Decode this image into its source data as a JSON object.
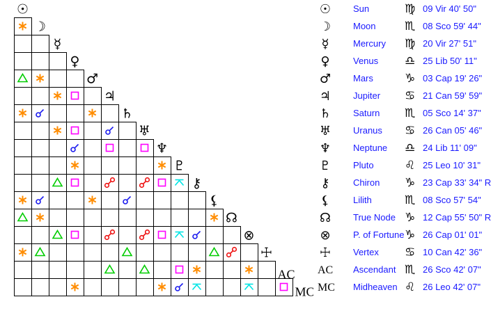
{
  "colors": {
    "conjunction": "#1a1aee",
    "sextile": "#ff8c00",
    "square": "#ff00ff",
    "trine": "#00cc00",
    "opposition": "#ee1111",
    "quincunx": "#00e5e5",
    "text": "#1a1aff"
  },
  "planets": [
    {
      "name": "Sun",
      "glyph": "☉",
      "icon": "sun-icon",
      "sign_glyph": "♍",
      "sign_icon": "virgo-icon",
      "position": "09 Vir 40' 50\""
    },
    {
      "name": "Moon",
      "glyph": "☽",
      "icon": "moon-icon",
      "sign_glyph": "♏",
      "sign_icon": "scorpio-icon",
      "position": "08 Sco 59' 44\""
    },
    {
      "name": "Mercury",
      "glyph": "☿",
      "icon": "mercury-icon",
      "sign_glyph": "♍",
      "sign_icon": "virgo-icon",
      "position": "20 Vir 27' 51\""
    },
    {
      "name": "Venus",
      "glyph": "♀",
      "icon": "venus-icon",
      "sign_glyph": "♎",
      "sign_icon": "libra-icon",
      "position": "25 Lib 50' 11\""
    },
    {
      "name": "Mars",
      "glyph": "♂",
      "icon": "mars-icon",
      "sign_glyph": "♑",
      "sign_icon": "capricorn-icon",
      "position": "03 Cap 19' 26\""
    },
    {
      "name": "Jupiter",
      "glyph": "♃",
      "icon": "jupiter-icon",
      "sign_glyph": "♋",
      "sign_icon": "cancer-icon",
      "position": "21 Can 59' 59\""
    },
    {
      "name": "Saturn",
      "glyph": "♄",
      "icon": "saturn-icon",
      "sign_glyph": "♏",
      "sign_icon": "scorpio-icon",
      "position": "05 Sco 14' 37\""
    },
    {
      "name": "Uranus",
      "glyph": "♅",
      "icon": "uranus-icon",
      "sign_glyph": "♋",
      "sign_icon": "cancer-icon",
      "position": "26 Can 05' 46\""
    },
    {
      "name": "Neptune",
      "glyph": "♆",
      "icon": "neptune-icon",
      "sign_glyph": "♎",
      "sign_icon": "libra-icon",
      "position": "24 Lib 11' 09\""
    },
    {
      "name": "Pluto",
      "glyph": "♇",
      "icon": "pluto-icon",
      "sign_glyph": "♌",
      "sign_icon": "leo-icon",
      "position": "25 Leo 10' 31\""
    },
    {
      "name": "Chiron",
      "glyph": "⚷",
      "icon": "chiron-icon",
      "sign_glyph": "♑",
      "sign_icon": "capricorn-icon",
      "position": "23 Cap 33' 34\" R"
    },
    {
      "name": "Lilith",
      "glyph": "⚸",
      "icon": "lilith-icon",
      "sign_glyph": "♏",
      "sign_icon": "scorpio-icon",
      "position": "08 Sco 57' 54\""
    },
    {
      "name": "True Node",
      "glyph": "☊",
      "icon": "true-node-icon",
      "sign_glyph": "♑",
      "sign_icon": "capricorn-icon",
      "position": "12 Cap 55' 50\" R"
    },
    {
      "name": "P. of Fortune",
      "glyph": "⊗",
      "icon": "part-of-fortune-icon",
      "sign_glyph": "♑",
      "sign_icon": "capricorn-icon",
      "position": "26 Cap 01' 01\""
    },
    {
      "name": "Vertex",
      "glyph": "☩",
      "icon": "vertex-icon",
      "sign_glyph": "♋",
      "sign_icon": "cancer-icon",
      "position": "10 Can 42' 36\""
    },
    {
      "name": "Ascendant",
      "glyph": "AC",
      "icon": "ascendant-icon",
      "sign_glyph": "♏",
      "sign_icon": "scorpio-icon",
      "position": "26 Sco 42' 07\""
    },
    {
      "name": "Midheaven",
      "glyph": "MC",
      "icon": "midheaven-icon",
      "sign_glyph": "♌",
      "sign_icon": "leo-icon",
      "position": "26 Leo 42' 07\""
    }
  ],
  "aspects": [
    {
      "a": "Moon",
      "b": "Sun",
      "type": "sextile"
    },
    {
      "a": "Mars",
      "b": "Sun",
      "type": "trine"
    },
    {
      "a": "Mars",
      "b": "Moon",
      "type": "sextile"
    },
    {
      "a": "Jupiter",
      "b": "Mercury",
      "type": "sextile"
    },
    {
      "a": "Jupiter",
      "b": "Venus",
      "type": "square"
    },
    {
      "a": "Saturn",
      "b": "Sun",
      "type": "sextile"
    },
    {
      "a": "Saturn",
      "b": "Moon",
      "type": "conjunction"
    },
    {
      "a": "Saturn",
      "b": "Mars",
      "type": "sextile"
    },
    {
      "a": "Uranus",
      "b": "Mercury",
      "type": "sextile"
    },
    {
      "a": "Uranus",
      "b": "Venus",
      "type": "square"
    },
    {
      "a": "Uranus",
      "b": "Jupiter",
      "type": "conjunction"
    },
    {
      "a": "Neptune",
      "b": "Venus",
      "type": "conjunction"
    },
    {
      "a": "Neptune",
      "b": "Jupiter",
      "type": "square"
    },
    {
      "a": "Neptune",
      "b": "Uranus",
      "type": "square"
    },
    {
      "a": "Pluto",
      "b": "Venus",
      "type": "sextile"
    },
    {
      "a": "Pluto",
      "b": "Neptune",
      "type": "sextile"
    },
    {
      "a": "Chiron",
      "b": "Mercury",
      "type": "trine"
    },
    {
      "a": "Chiron",
      "b": "Venus",
      "type": "square"
    },
    {
      "a": "Chiron",
      "b": "Jupiter",
      "type": "opposition"
    },
    {
      "a": "Chiron",
      "b": "Uranus",
      "type": "opposition"
    },
    {
      "a": "Chiron",
      "b": "Neptune",
      "type": "square"
    },
    {
      "a": "Chiron",
      "b": "Pluto",
      "type": "quincunx"
    },
    {
      "a": "Lilith",
      "b": "Sun",
      "type": "sextile"
    },
    {
      "a": "Lilith",
      "b": "Moon",
      "type": "conjunction"
    },
    {
      "a": "Lilith",
      "b": "Mars",
      "type": "sextile"
    },
    {
      "a": "Lilith",
      "b": "Saturn",
      "type": "conjunction"
    },
    {
      "a": "True Node",
      "b": "Sun",
      "type": "trine"
    },
    {
      "a": "True Node",
      "b": "Moon",
      "type": "sextile"
    },
    {
      "a": "True Node",
      "b": "Lilith",
      "type": "sextile"
    },
    {
      "a": "P. of Fortune",
      "b": "Mercury",
      "type": "trine"
    },
    {
      "a": "P. of Fortune",
      "b": "Venus",
      "type": "square"
    },
    {
      "a": "P. of Fortune",
      "b": "Jupiter",
      "type": "opposition"
    },
    {
      "a": "P. of Fortune",
      "b": "Uranus",
      "type": "opposition"
    },
    {
      "a": "P. of Fortune",
      "b": "Neptune",
      "type": "square"
    },
    {
      "a": "P. of Fortune",
      "b": "Pluto",
      "type": "quincunx"
    },
    {
      "a": "P. of Fortune",
      "b": "Chiron",
      "type": "conjunction"
    },
    {
      "a": "Vertex",
      "b": "Sun",
      "type": "sextile"
    },
    {
      "a": "Vertex",
      "b": "Moon",
      "type": "trine"
    },
    {
      "a": "Vertex",
      "b": "Saturn",
      "type": "trine"
    },
    {
      "a": "Vertex",
      "b": "Lilith",
      "type": "trine"
    },
    {
      "a": "Vertex",
      "b": "True Node",
      "type": "opposition"
    },
    {
      "a": "Ascendant",
      "b": "Jupiter",
      "type": "trine"
    },
    {
      "a": "Ascendant",
      "b": "Uranus",
      "type": "trine"
    },
    {
      "a": "Ascendant",
      "b": "Pluto",
      "type": "square"
    },
    {
      "a": "Ascendant",
      "b": "Chiron",
      "type": "sextile"
    },
    {
      "a": "Ascendant",
      "b": "P. of Fortune",
      "type": "sextile"
    },
    {
      "a": "Midheaven",
      "b": "Venus",
      "type": "sextile"
    },
    {
      "a": "Midheaven",
      "b": "Neptune",
      "type": "sextile"
    },
    {
      "a": "Midheaven",
      "b": "Pluto",
      "type": "conjunction"
    },
    {
      "a": "Midheaven",
      "b": "Chiron",
      "type": "quincunx"
    },
    {
      "a": "Midheaven",
      "b": "P. of Fortune",
      "type": "quincunx"
    },
    {
      "a": "Midheaven",
      "b": "Ascendant",
      "type": "square"
    }
  ]
}
